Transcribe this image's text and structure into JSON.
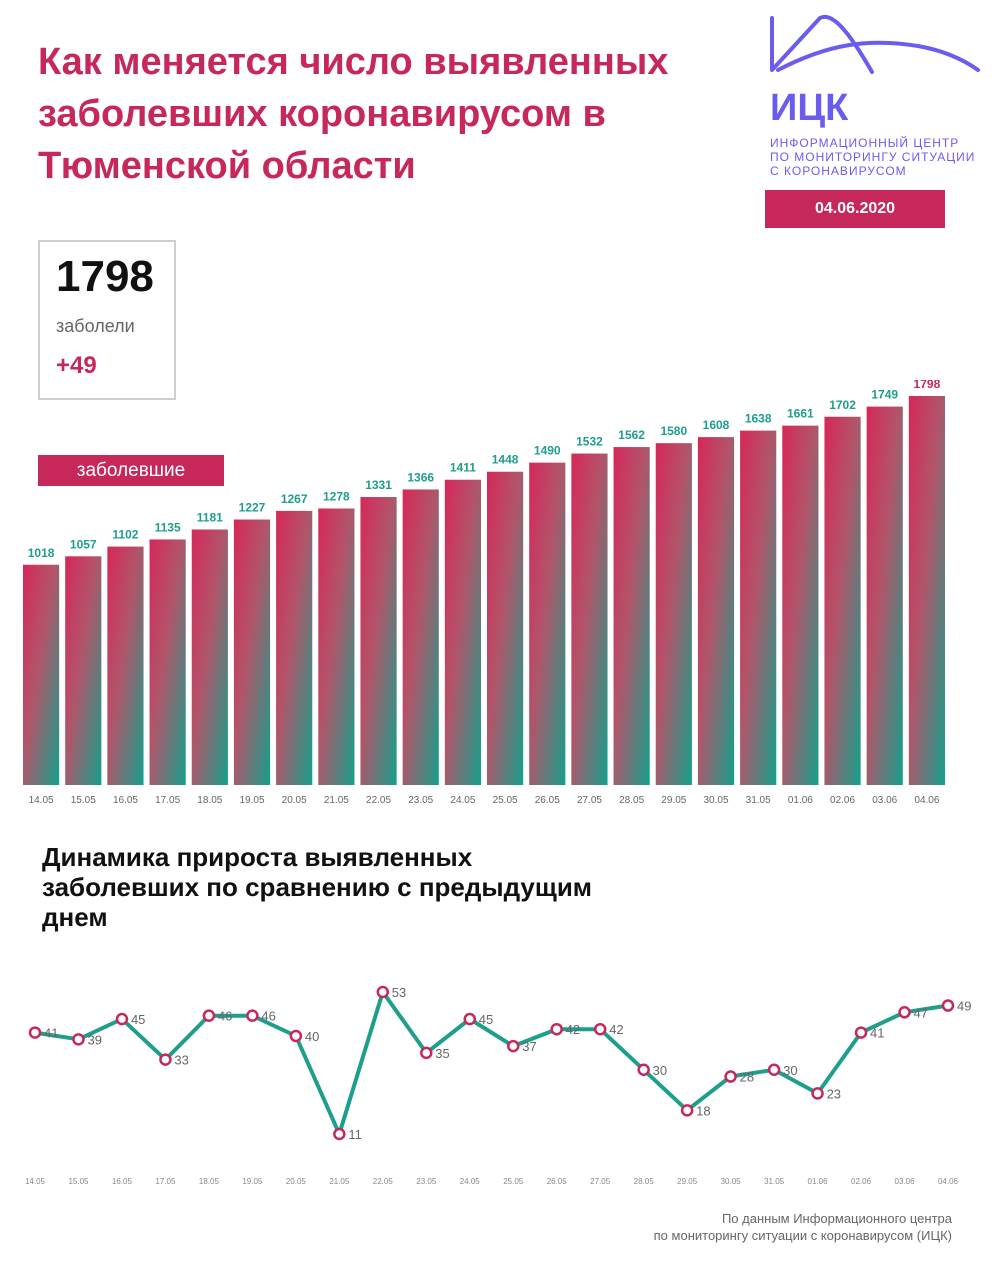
{
  "title": "Как меняется число выявленных заболевших коронавирусом в Тюменской области",
  "logo": {
    "name": "ИЦК",
    "subtitle_lines": [
      "ИНФОРМАЦИОННЫЙ ЦЕНТР",
      "ПО МОНИТОРИНГУ СИТУАЦИИ",
      "С КОРОНАВИРУСОМ"
    ]
  },
  "date": "04.06.2020",
  "summary": {
    "total": "1798",
    "label": "заболели",
    "delta": "+49"
  },
  "colors": {
    "accent": "#c7285a",
    "teal": "#1e9e8c",
    "logo": "#6b5cf0",
    "text_gray": "#666666"
  },
  "chart_data": [
    {
      "type": "bar",
      "series_label": "заболевшие",
      "categories": [
        "14.05",
        "15.05",
        "16.05",
        "17.05",
        "18.05",
        "19.05",
        "20.05",
        "21.05",
        "22.05",
        "23.05",
        "24.05",
        "25.05",
        "26.05",
        "27.05",
        "28.05",
        "29.05",
        "30.05",
        "31.05",
        "01.06",
        "02.06",
        "03.06",
        "04.06"
      ],
      "values": [
        1018,
        1057,
        1102,
        1135,
        1181,
        1227,
        1267,
        1278,
        1331,
        1366,
        1411,
        1448,
        1490,
        1532,
        1562,
        1580,
        1608,
        1638,
        1661,
        1702,
        1749,
        1798
      ],
      "title": "",
      "xlabel": "",
      "ylabel": "",
      "ylim": [
        0,
        1798
      ],
      "grid": false
    },
    {
      "type": "line",
      "title": "Динамика прироста выявленных заболевших по сравнению с предыдущим днем",
      "categories": [
        "14.05",
        "15.05",
        "16.05",
        "17.05",
        "18.05",
        "19.05",
        "20.05",
        "21.05",
        "22.05",
        "23.05",
        "24.05",
        "25.05",
        "26.05",
        "27.05",
        "28.05",
        "29.05",
        "30.05",
        "31.05",
        "01.06",
        "02.06",
        "03.06",
        "04.06"
      ],
      "values": [
        41,
        39,
        45,
        33,
        46,
        46,
        40,
        11,
        53,
        35,
        45,
        37,
        42,
        42,
        30,
        18,
        28,
        30,
        23,
        41,
        47,
        49
      ],
      "xlabel": "",
      "ylabel": "",
      "ylim": [
        11,
        53
      ],
      "grid": false
    }
  ],
  "source": [
    "По данным Информационного центра",
    "по мониторингу ситуации с коронавирусом (ИЦК)"
  ]
}
